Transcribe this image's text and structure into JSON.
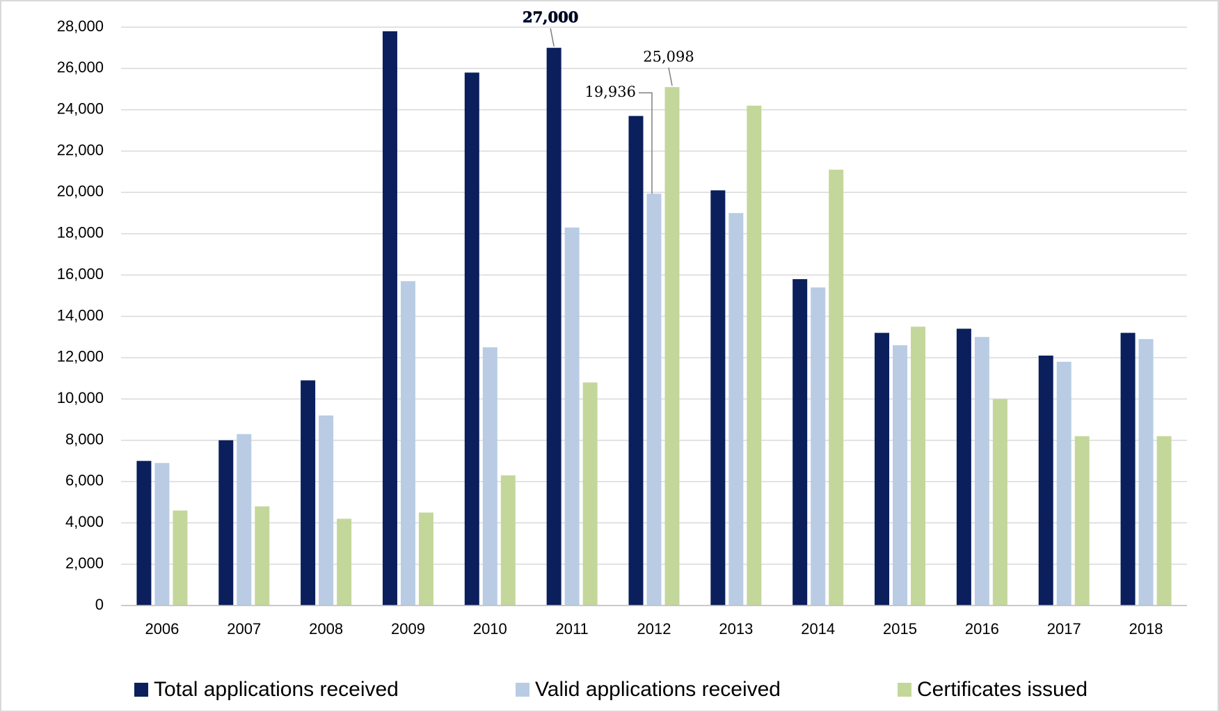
{
  "chart_data": {
    "type": "bar",
    "categories": [
      "2006",
      "2007",
      "2008",
      "2009",
      "2010",
      "2011",
      "2012",
      "2013",
      "2014",
      "2015",
      "2016",
      "2017",
      "2018"
    ],
    "series": [
      {
        "name": "Total applications received",
        "color": "#0a1f5c",
        "values": [
          7000,
          8000,
          10900,
          27800,
          25800,
          27000,
          23700,
          20100,
          15800,
          13200,
          13400,
          12100,
          13200
        ],
        "value_labels": [
          null,
          null,
          null,
          null,
          null,
          "27,000",
          null,
          null,
          null,
          null,
          null,
          null,
          null
        ]
      },
      {
        "name": "Valid applications received",
        "color": "#b9cce4",
        "values": [
          6900,
          8300,
          9200,
          15700,
          12500,
          18300,
          19936,
          19000,
          15400,
          12600,
          13000,
          11800,
          12900
        ],
        "value_labels": [
          null,
          null,
          null,
          null,
          null,
          null,
          "19,936",
          null,
          null,
          null,
          null,
          null,
          null
        ]
      },
      {
        "name": "Certificates issued",
        "color": "#c4d79b",
        "values": [
          4600,
          4800,
          4200,
          4500,
          6300,
          10800,
          25098,
          24200,
          21100,
          13500,
          10000,
          8200,
          8200
        ],
        "value_labels": [
          null,
          null,
          null,
          null,
          null,
          null,
          "25,098",
          null,
          null,
          null,
          null,
          null,
          null
        ]
      }
    ],
    "ylim": [
      0,
      28000
    ],
    "yticks": [
      0,
      {
        "value": 2000,
        "label": "2,000"
      },
      {
        "value": 4000,
        "label": "4,000"
      },
      {
        "value": 6000,
        "label": "6,000"
      },
      {
        "value": 8000,
        "label": "8,000"
      },
      {
        "value": 10000,
        "label": "10,000"
      },
      {
        "value": 12000,
        "label": "12,000"
      },
      {
        "value": 14000,
        "label": "14,000"
      },
      {
        "value": 16000,
        "label": "16,000"
      },
      {
        "value": 18000,
        "label": "18,000"
      },
      {
        "value": 20000,
        "label": "20,000"
      },
      {
        "value": 22000,
        "label": "22,000"
      },
      {
        "value": 24000,
        "label": "24,000"
      },
      {
        "value": 26000,
        "label": "26,000"
      },
      {
        "value": 28000,
        "label": "28,000"
      }
    ],
    "grid": true,
    "legend": "bottom"
  }
}
